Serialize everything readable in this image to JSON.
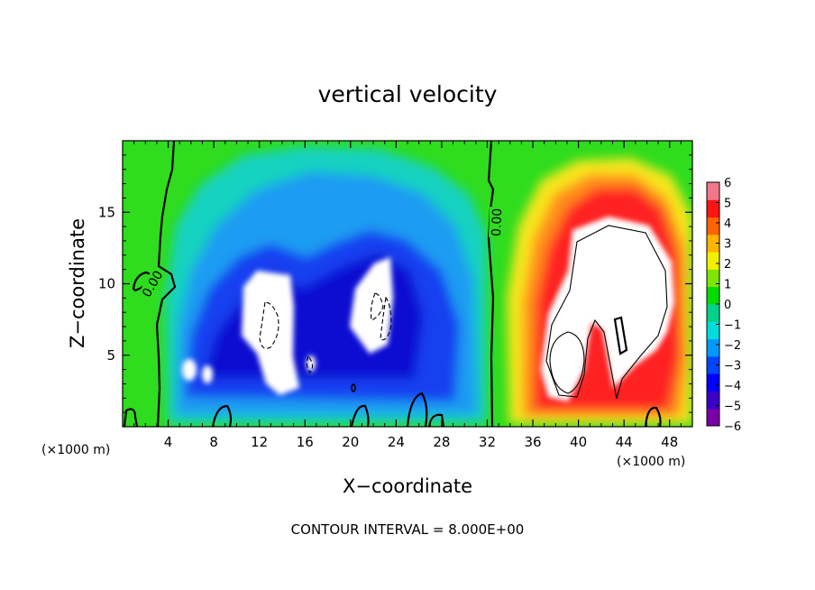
{
  "chart_data": {
    "type": "heatmap",
    "title": "vertical velocity",
    "xlabel": "X−coordinate",
    "ylabel": "Z−coordinate",
    "x_unit_left": "(×1000 m)",
    "x_unit_right": "(×1000 m)",
    "xlim": [
      0,
      50
    ],
    "ylim": [
      0,
      20
    ],
    "x_ticks": [
      4,
      8,
      12,
      16,
      20,
      24,
      28,
      32,
      36,
      40,
      44,
      48
    ],
    "x_tick_labels": [
      "4",
      "8",
      "12",
      "16",
      "20",
      "24",
      "28",
      "32",
      "36",
      "40",
      "44",
      "48"
    ],
    "y_ticks": [
      5,
      10,
      15
    ],
    "y_tick_labels": [
      "5",
      "10",
      "15"
    ],
    "colorbar": {
      "min": -6,
      "max": 6,
      "tick_values": [
        6,
        5,
        4,
        3,
        2,
        1,
        0,
        -1,
        -2,
        -3,
        -4,
        -5,
        -6
      ],
      "tick_labels": [
        "6",
        "5",
        "4",
        "3",
        "2",
        "1",
        "0",
        "−1",
        "−2",
        "−3",
        "−4",
        "−5",
        "−6"
      ],
      "colors": [
        "#7a00a8",
        "#3a00c8",
        "#0000ff",
        "#0046ff",
        "#0099ff",
        "#00dcdc",
        "#00d28c",
        "#00dc00",
        "#7ce600",
        "#f0f000",
        "#ffb400",
        "#ff6400",
        "#ff1414",
        "#f0788c"
      ]
    },
    "contour_labels": [
      {
        "text": "0.00",
        "x": 2.6,
        "z": 10.0,
        "rotation": -60
      },
      {
        "text": "0.00",
        "x": 32.8,
        "z": 14.3,
        "rotation": -88
      }
    ],
    "contour_interval_note": "CONTOUR INTERVAL = 8.000E+00",
    "updrafts_saturated": [
      {
        "x": 41.5,
        "z": 10.0,
        "level": "> 6"
      }
    ],
    "downdrafts_saturated": [
      {
        "x": 13.0,
        "z": 8.0,
        "level": "< −6"
      },
      {
        "x": 22.0,
        "z": 9.0,
        "level": "< −6"
      }
    ]
  }
}
